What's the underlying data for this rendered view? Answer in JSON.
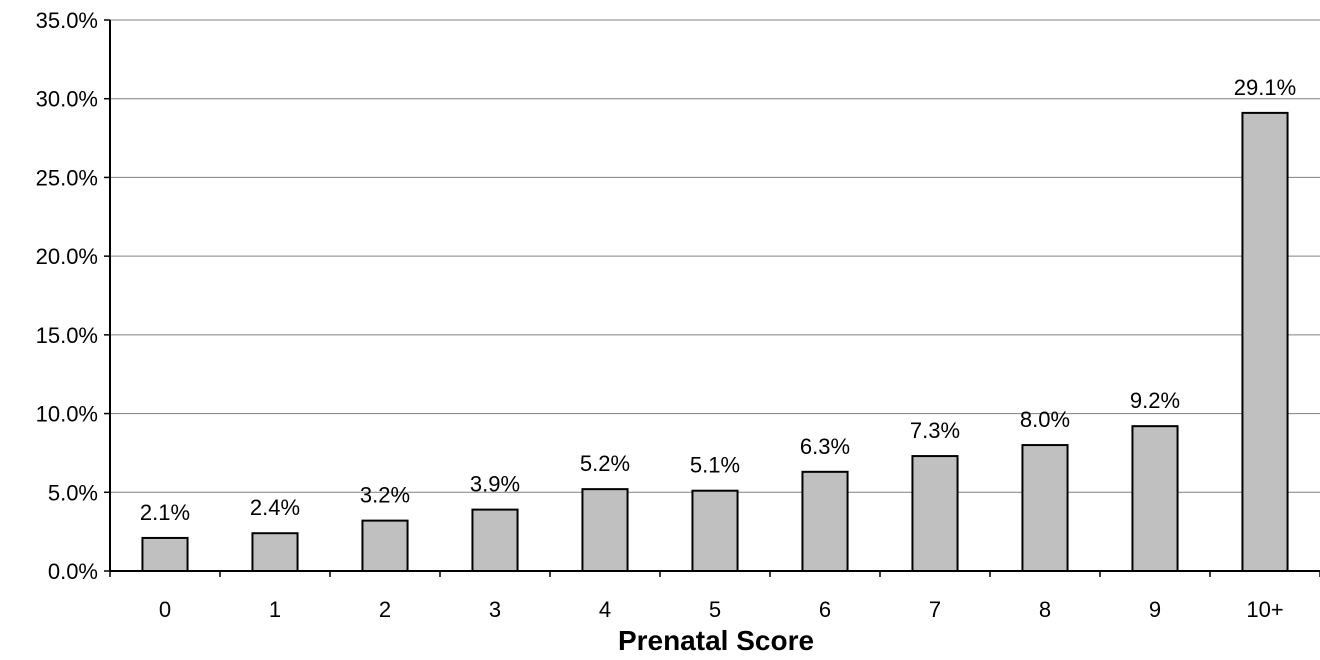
{
  "chart_data": {
    "type": "bar",
    "categories": [
      "0",
      "1",
      "2",
      "3",
      "4",
      "5",
      "6",
      "7",
      "8",
      "9",
      "10+"
    ],
    "values": [
      2.1,
      2.4,
      3.2,
      3.9,
      5.2,
      5.1,
      6.3,
      7.3,
      8.0,
      9.2,
      29.1
    ],
    "data_labels": [
      "2.1%",
      "2.4%",
      "3.2%",
      "3.9%",
      "5.2%",
      "5.1%",
      "6.3%",
      "7.3%",
      "8.0%",
      "9.2%",
      "29.1%"
    ],
    "title": "",
    "xlabel": "Prenatal Score",
    "ylabel": "",
    "ylim": [
      0,
      35
    ],
    "yticks": [
      0,
      5,
      10,
      15,
      20,
      25,
      30,
      35
    ],
    "ytick_labels": [
      "0.0%",
      "5.0%",
      "10.0%",
      "15.0%",
      "20.0%",
      "25.0%",
      "30.0%",
      "35.0%"
    ],
    "grid": true,
    "legend": "none",
    "colors": {
      "bar_fill": "#c0c0c0",
      "bar_stroke": "#000000",
      "grid": "#808080",
      "axis": "#000000"
    }
  }
}
